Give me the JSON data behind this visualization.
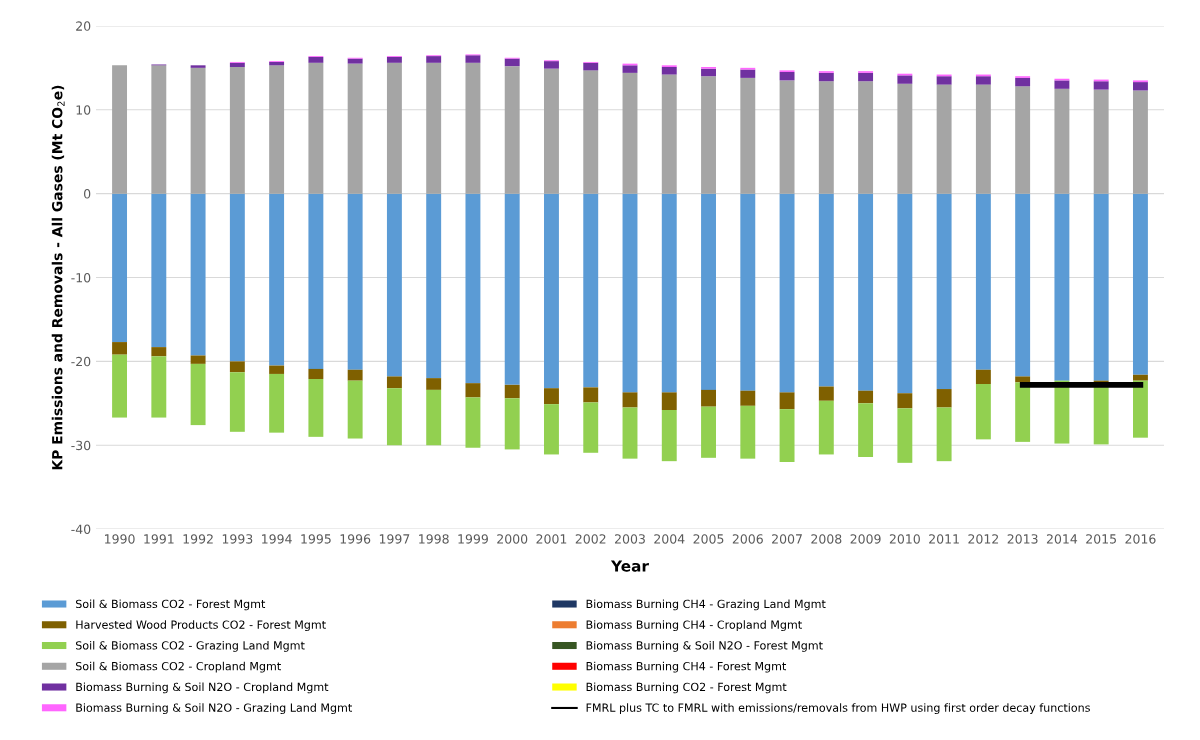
{
  "chart_data": {
    "type": "bar",
    "stacked": true,
    "xlabel": "Year",
    "ylabel": "KP Emissions and Removals - All Gases (Mt CO$_{2}$e)",
    "categories": [
      "1990",
      "1991",
      "1992",
      "1993",
      "1994",
      "1995",
      "1996",
      "1997",
      "1998",
      "1999",
      "2000",
      "2001",
      "2002",
      "2003",
      "2004",
      "2005",
      "2006",
      "2007",
      "2008",
      "2009",
      "2010",
      "2011",
      "2012",
      "2013",
      "2014",
      "2015",
      "2016"
    ],
    "ylim": [
      -40,
      20
    ],
    "yticks": [
      -40,
      -30,
      -20,
      -10,
      0,
      10,
      20
    ],
    "grid": "y",
    "legend": "bottom",
    "series": [
      {
        "name": "Soil & Biomass CO2 - Forest Mgmt",
        "color": "#5b9bd5",
        "values": [
          -17.7,
          -18.3,
          -19.3,
          -20.0,
          -20.5,
          -20.9,
          -21.0,
          -21.8,
          -22.0,
          -22.6,
          -22.8,
          -23.2,
          -23.1,
          -23.7,
          -23.7,
          -23.4,
          -23.5,
          -23.7,
          -23.0,
          -23.5,
          -23.8,
          -23.3,
          -21.0,
          -21.8,
          -22.3,
          -22.3,
          -21.6
        ]
      },
      {
        "name": "Harvested Wood Products CO2 - Forest Mgmt",
        "color": "#7f6000",
        "values": [
          -1.5,
          -1.1,
          -1.0,
          -1.3,
          -1.0,
          -1.2,
          -1.3,
          -1.4,
          -1.4,
          -1.7,
          -1.6,
          -1.9,
          -1.8,
          -1.8,
          -2.1,
          -2.0,
          -1.8,
          -2.0,
          -1.7,
          -1.5,
          -1.8,
          -2.2,
          -1.7,
          -0.7,
          null,
          -0.2,
          -0.7
        ]
      },
      {
        "name": "Soil & Biomass CO2 - Grazing Land Mgmt",
        "color": "#92d050",
        "values": [
          -7.5,
          -7.3,
          -7.3,
          -7.1,
          -7.0,
          -6.9,
          -6.9,
          -6.8,
          -6.6,
          -6.0,
          -6.1,
          -6.0,
          -6.0,
          -6.1,
          -6.1,
          -6.1,
          -6.3,
          -6.3,
          -6.4,
          -6.4,
          -6.5,
          -6.4,
          -6.6,
          -7.1,
          -7.5,
          -7.4,
          -6.8
        ]
      },
      {
        "name": "Soil & Biomass CO2 - Cropland Mgmt",
        "color": "#a5a5a5",
        "values": [
          15.3,
          15.3,
          15.0,
          15.1,
          15.3,
          15.6,
          15.5,
          15.6,
          15.6,
          15.6,
          15.2,
          14.9,
          14.7,
          14.4,
          14.2,
          14.0,
          13.8,
          13.5,
          13.4,
          13.4,
          13.1,
          13.0,
          13.0,
          12.8,
          12.5,
          12.4,
          12.3
        ]
      },
      {
        "name": "Biomass Burning & Soil N2O - Cropland Mgmt",
        "color": "#7030a0",
        "values": [
          0.0,
          0.1,
          0.3,
          0.5,
          0.4,
          0.7,
          0.6,
          0.7,
          0.8,
          0.9,
          0.9,
          0.9,
          0.9,
          0.9,
          0.9,
          0.9,
          1.0,
          1.0,
          1.0,
          1.0,
          1.0,
          1.0,
          1.0,
          1.0,
          1.0,
          1.0,
          1.0
        ]
      },
      {
        "name": "Biomass Burning & Soil N2O - Grazing Land Mgmt",
        "color": "#ff66ff",
        "values": [
          0,
          0,
          0,
          0.1,
          0.1,
          0.1,
          0.1,
          0.1,
          0.1,
          0.1,
          0.1,
          0.1,
          0.1,
          0.2,
          0.2,
          0.2,
          0.2,
          0.2,
          0.2,
          0.2,
          0.2,
          0.2,
          0.2,
          0.2,
          0.2,
          0.2,
          0.2
        ]
      },
      {
        "name": "Biomass Burning CH4 - Grazing Land Mgmt",
        "color": "#1f3864",
        "values": [
          0,
          0,
          0,
          0,
          0,
          0,
          0,
          0,
          0,
          0,
          0,
          0,
          0,
          0,
          0,
          0,
          0,
          0,
          0,
          0,
          0,
          0,
          0,
          0,
          0,
          0,
          0
        ]
      },
      {
        "name": "Biomass Burning CH4 - Cropland Mgmt",
        "color": "#ed7d31",
        "values": [
          0,
          0,
          0,
          0,
          0,
          0,
          0,
          0,
          0,
          0,
          0,
          0,
          0,
          0,
          0,
          0,
          0,
          0,
          0,
          0,
          0,
          0,
          0,
          0,
          0,
          0,
          0
        ]
      },
      {
        "name": "Biomass Burning & Soil N2O - Forest Mgmt",
        "color": "#375623",
        "values": [
          0,
          0,
          0,
          0,
          0,
          0,
          0,
          0,
          0,
          0,
          0,
          0,
          0,
          0,
          0,
          0,
          0,
          0,
          0,
          0,
          0,
          0,
          0,
          0,
          0,
          0,
          0
        ]
      },
      {
        "name": "Biomass Burning CH4 - Forest Mgmt",
        "color": "#ff0000",
        "values": [
          0,
          0,
          0,
          0,
          0,
          0,
          0,
          0,
          0,
          0,
          0,
          0,
          0,
          0,
          0,
          0,
          0,
          0,
          0,
          0,
          0,
          0,
          0,
          0,
          0,
          0,
          0
        ]
      },
      {
        "name": "Biomass Burning CO2 - Forest Mgmt",
        "color": "#ffff00",
        "values": [
          0,
          0,
          0,
          0,
          0,
          0,
          0,
          0,
          0,
          0,
          0,
          0,
          0,
          0,
          0,
          0,
          0,
          0,
          0,
          0,
          0,
          0,
          0,
          0,
          0,
          0,
          0
        ]
      },
      {
        "name": "FMRL plus TC to FMRL with emissions/removals from HWP using first order decay functions",
        "type": "line",
        "color": "#000000",
        "values": [
          null,
          null,
          null,
          null,
          null,
          null,
          null,
          null,
          null,
          null,
          null,
          null,
          null,
          null,
          null,
          null,
          null,
          null,
          null,
          null,
          null,
          null,
          null,
          -22.8,
          -22.8,
          -22.8,
          -22.8
        ]
      }
    ]
  }
}
